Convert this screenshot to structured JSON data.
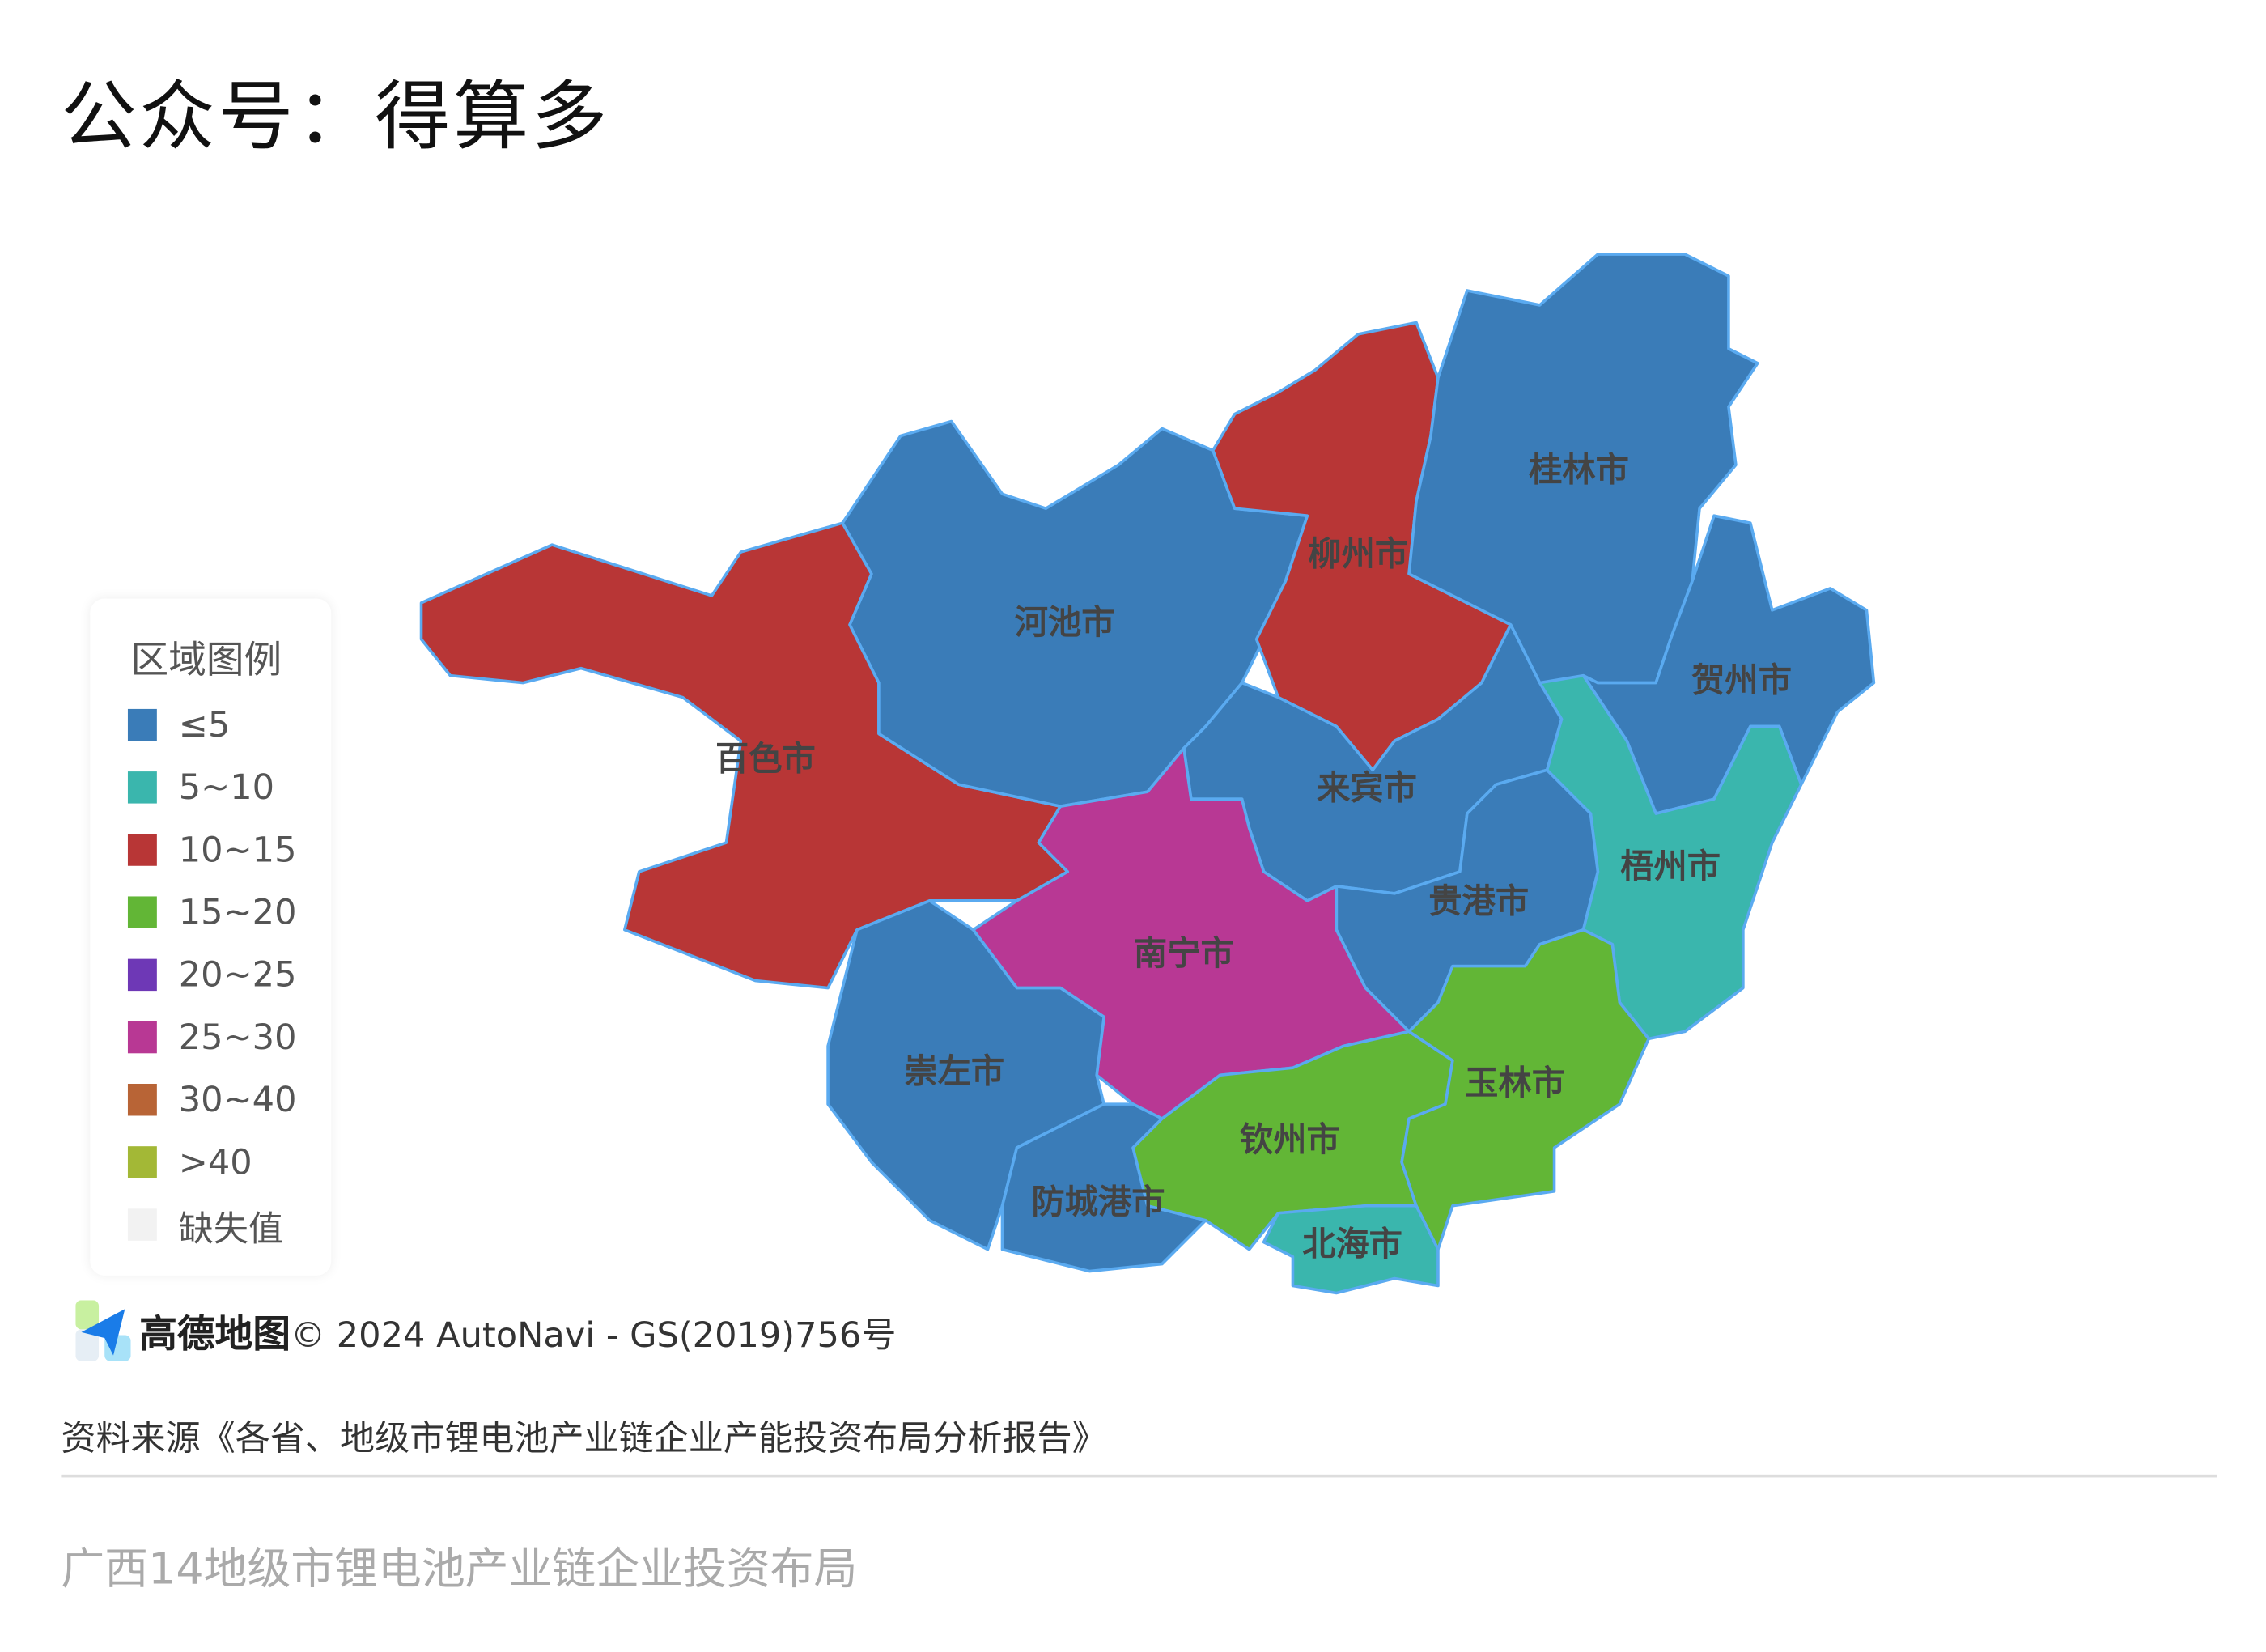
{
  "header": {
    "title": "公众号：得算多"
  },
  "legend": {
    "title": "区域图例",
    "items": [
      {
        "label": "≤5",
        "color": "#3a7cb8"
      },
      {
        "label": "5~10",
        "color": "#3ab6ad"
      },
      {
        "label": "10~15",
        "color": "#b83636"
      },
      {
        "label": "15~20",
        "color": "#62b636"
      },
      {
        "label": "20~25",
        "color": "#6e38b6"
      },
      {
        "label": "25~30",
        "color": "#b83894"
      },
      {
        "label": "30~40",
        "color": "#b86436"
      },
      {
        "label": ">40",
        "color": "#a3b836"
      },
      {
        "label": "缺失值",
        "color": "#f2f2f2"
      }
    ]
  },
  "map": {
    "regions": [
      {
        "name": "百色市",
        "class": "10~15"
      },
      {
        "name": "河池市",
        "class": "≤5"
      },
      {
        "name": "柳州市",
        "class": "10~15"
      },
      {
        "name": "桂林市",
        "class": "≤5"
      },
      {
        "name": "贺州市",
        "class": "≤5"
      },
      {
        "name": "梧州市",
        "class": "5~10"
      },
      {
        "name": "来宾市",
        "class": "≤5"
      },
      {
        "name": "贵港市",
        "class": "≤5"
      },
      {
        "name": "南宁市",
        "class": "25~30"
      },
      {
        "name": "崇左市",
        "class": "≤5"
      },
      {
        "name": "防城港市",
        "class": "≤5"
      },
      {
        "name": "钦州市",
        "class": "15~20"
      },
      {
        "name": "玉林市",
        "class": "15~20"
      },
      {
        "name": "北海市",
        "class": "5~10"
      }
    ]
  },
  "attribution": {
    "logo_text": "高德地图",
    "copyright": "© 2024 AutoNavi - GS(2019)756号"
  },
  "footer": {
    "source": "资料来源《各省、地级市锂电池产业链企业产能投资布局分析报告》",
    "subtitle": "广西14地级市锂电池产业链企业投资布局"
  }
}
